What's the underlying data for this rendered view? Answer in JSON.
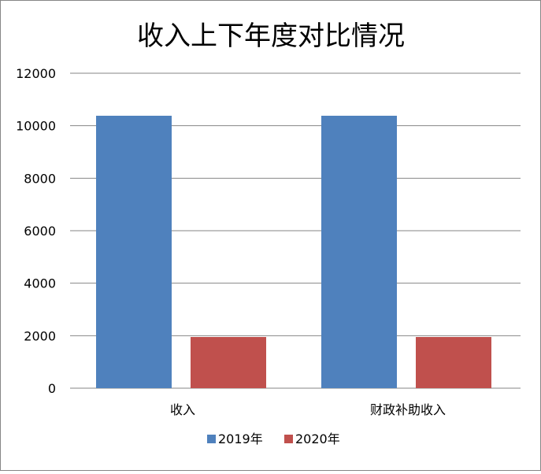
{
  "chart_data": {
    "type": "bar",
    "title": "收入上下年度对比情况",
    "categories": [
      "收入",
      "财政补助收入"
    ],
    "series": [
      {
        "name": "2019年",
        "color": "#4F81BD",
        "values": [
          10380,
          10380
        ]
      },
      {
        "name": "2020年",
        "color": "#C0504D",
        "values": [
          1950,
          1950
        ]
      }
    ],
    "ylim": [
      0,
      12000
    ],
    "yticks": [
      0,
      2000,
      4000,
      6000,
      8000,
      10000,
      12000
    ],
    "xlabel": "",
    "ylabel": "",
    "grid": true,
    "legend": "bottom"
  }
}
